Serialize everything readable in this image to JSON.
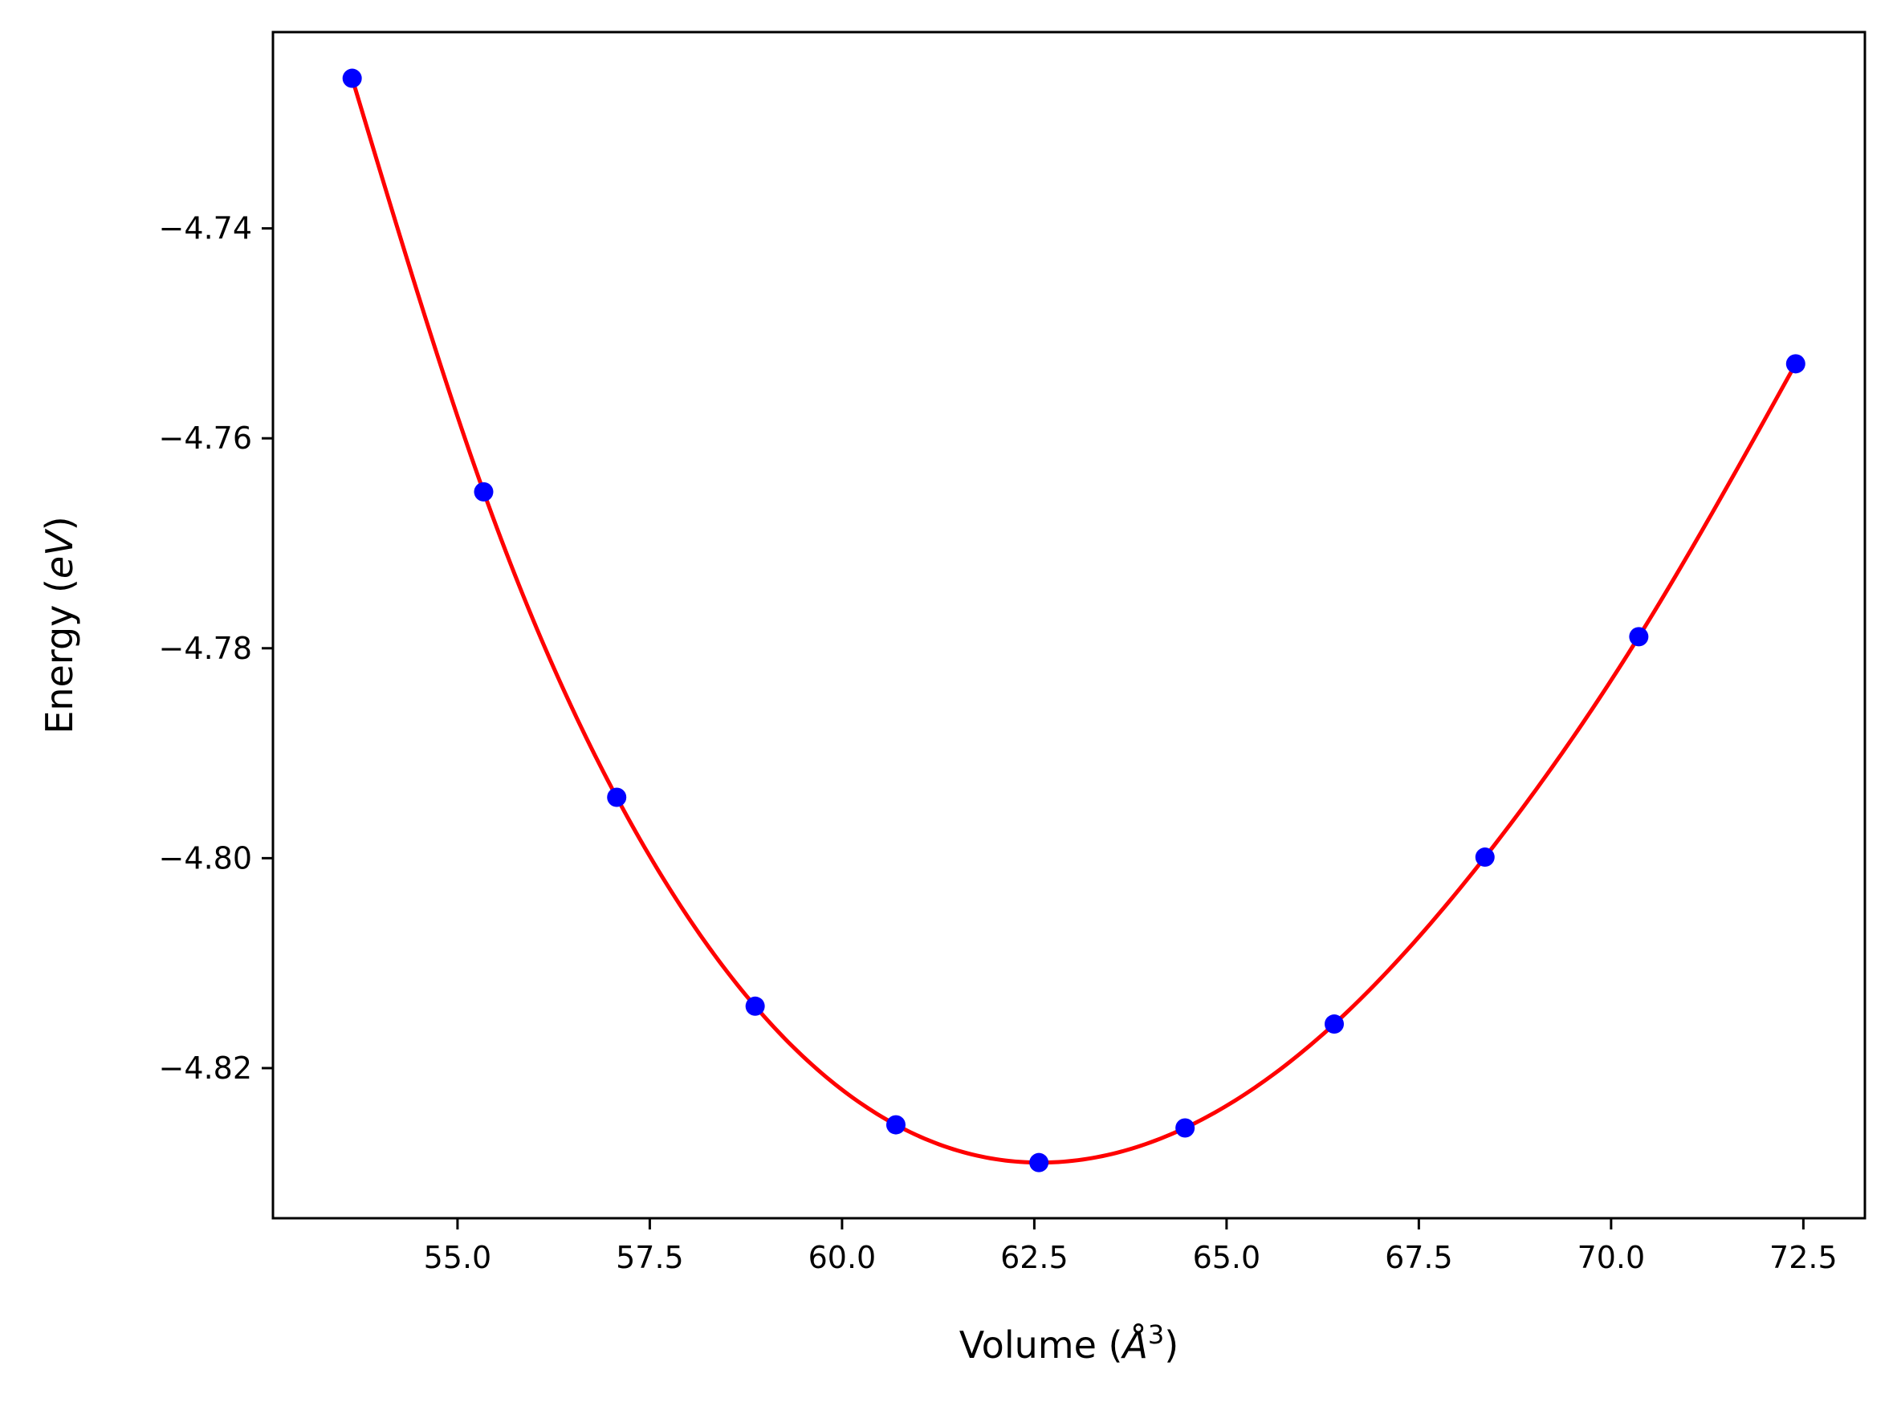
{
  "chart_data": {
    "type": "line",
    "title": "",
    "xlabel": {
      "prefix": "Volume (",
      "unit": "Å",
      "exponent": "3",
      "suffix": ")"
    },
    "ylabel": {
      "prefix": "Energy (",
      "unit": "eV",
      "suffix": ")"
    },
    "xlim": [
      52.6,
      73.3
    ],
    "ylim": [
      -4.8343,
      -4.7213
    ],
    "xticks": [
      55.0,
      57.5,
      60.0,
      62.5,
      65.0,
      67.5,
      70.0,
      72.5
    ],
    "xtick_labels": [
      "55.0",
      "57.5",
      "60.0",
      "62.5",
      "65.0",
      "67.5",
      "70.0",
      "72.5"
    ],
    "yticks": [
      -4.82,
      -4.8,
      -4.78,
      -4.76,
      -4.74
    ],
    "ytick_labels": [
      "−4.82",
      "−4.80",
      "−4.78",
      "−4.76",
      "−4.74"
    ],
    "grid": false,
    "legend": null,
    "series": [
      {
        "kind": "scatter",
        "color": "#0000ff",
        "x": [
          53.63,
          55.34,
          57.07,
          58.87,
          60.7,
          62.56,
          64.46,
          66.4,
          68.36,
          70.36,
          72.4
        ],
        "y": [
          -4.7257,
          -4.7651,
          -4.7942,
          -4.8141,
          -4.8254,
          -4.829,
          -4.8257,
          -4.8158,
          -4.7999,
          -4.7789,
          -4.7529
        ]
      },
      {
        "kind": "line",
        "color": "#ff0000",
        "fit": "interpolated curve through data points"
      }
    ]
  }
}
